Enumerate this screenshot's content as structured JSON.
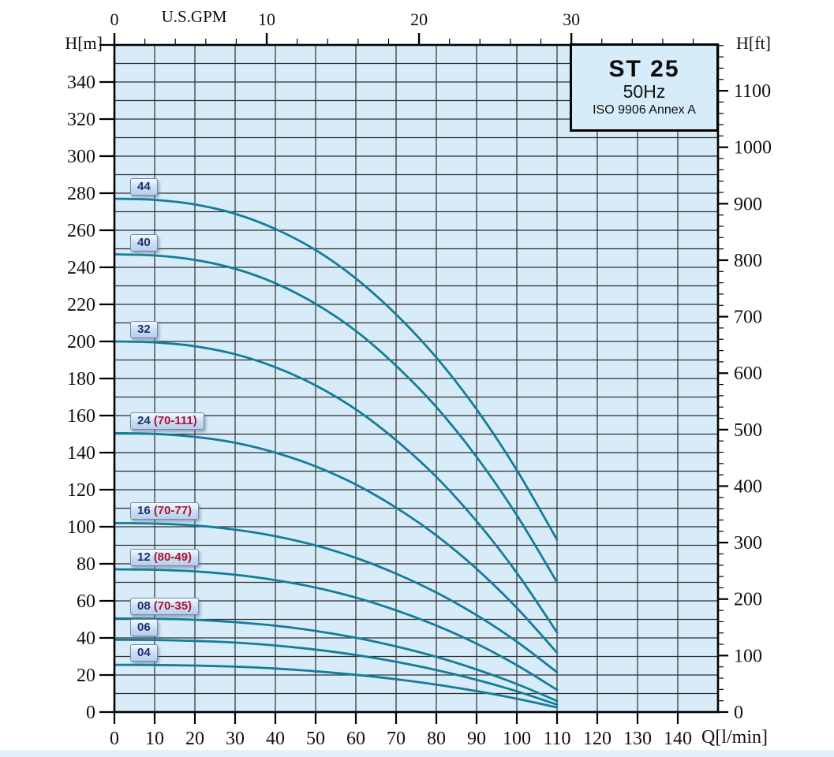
{
  "title_box": {
    "model": "ST 25",
    "frequency": "50Hz",
    "standard": "ISO 9906 Annex A"
  },
  "axis_titles": {
    "left": "H[m]",
    "right": "H[ft]",
    "top": "U.S.GPM",
    "bottom": "Q[l/min]"
  },
  "colors": {
    "plot_bg": "#d7ecf8",
    "grid": "#2e2e2e",
    "frame": "#000000",
    "curve": "#157d99",
    "pill_number": "#1c2e6e",
    "pill_suffix": "#a81535",
    "title_box_bg": "#d6ecf8"
  },
  "chart_data": {
    "type": "line",
    "title": "ST 25 50Hz pump performance curves (head vs flow)",
    "xlabel": "Q[l/min]",
    "ylabel": "H[m]",
    "x_range": [
      0,
      150
    ],
    "y_range_m": [
      0,
      360
    ],
    "x_gridline_step": 10,
    "y_gridline_step_m": 10,
    "left_tick_labels": [
      0,
      20,
      40,
      60,
      80,
      100,
      120,
      140,
      160,
      180,
      200,
      220,
      240,
      260,
      280,
      300,
      320,
      340
    ],
    "right_tick_labels_ft": [
      0,
      100,
      200,
      300,
      400,
      500,
      600,
      700,
      800,
      900,
      1000,
      1100
    ],
    "right_minor_step_ft": 20,
    "bottom_tick_labels": [
      0,
      10,
      20,
      30,
      40,
      50,
      60,
      70,
      80,
      90,
      100,
      110,
      120,
      130,
      140
    ],
    "top_tick_labels_gpm": [
      0,
      10,
      20,
      30
    ],
    "top_minor_step_gpm": 2,
    "gpm_to_lmin": 3.785,
    "x": [
      0,
      10,
      20,
      30,
      40,
      50,
      60,
      70,
      80,
      90,
      100,
      110
    ],
    "series": [
      {
        "name": "44",
        "label": "44",
        "label_suffix": "",
        "values": [
          277,
          276.4,
          273.9,
          268.9,
          260.7,
          249.3,
          234.0,
          214.6,
          191.3,
          163.4,
          130.6,
          93
        ]
      },
      {
        "name": "40",
        "label": "40",
        "label_suffix": "",
        "values": [
          247,
          246.4,
          244.0,
          239.2,
          231.4,
          220.3,
          205.7,
          186.9,
          164.6,
          137.7,
          106.2,
          70
        ]
      },
      {
        "name": "32",
        "label": "32",
        "label_suffix": "",
        "values": [
          200,
          199.5,
          197.4,
          193.1,
          186.1,
          176.3,
          163.3,
          146.7,
          126.9,
          103.0,
          75.1,
          43
        ]
      },
      {
        "name": "24",
        "label": "24",
        "label_suffix": "(70-111)",
        "values": [
          150.5,
          150.1,
          148.5,
          145.3,
          140.0,
          132.6,
          122.8,
          110.3,
          95.3,
          77.3,
          56.2,
          32
        ]
      },
      {
        "name": "16",
        "label": "16",
        "label_suffix": "(70-77)",
        "values": [
          102,
          101.7,
          100.7,
          98.4,
          94.9,
          89.9,
          83.2,
          74.7,
          64.5,
          52.3,
          38.0,
          21.5
        ]
      },
      {
        "name": "12",
        "label": "12",
        "label_suffix": "(80-49)",
        "values": [
          77,
          76.8,
          75.9,
          74.1,
          71.2,
          67.2,
          61.8,
          54.9,
          46.7,
          36.9,
          25.3,
          12
        ]
      },
      {
        "name": "08",
        "label": "08",
        "label_suffix": "(70-35)",
        "values": [
          50.5,
          50.4,
          49.8,
          48.5,
          46.6,
          43.8,
          40.1,
          35.4,
          29.8,
          23.0,
          15.1,
          6
        ]
      },
      {
        "name": "06",
        "label": "06",
        "label_suffix": "",
        "values": [
          39,
          38.9,
          38.4,
          37.5,
          35.9,
          33.7,
          30.8,
          27.1,
          22.7,
          17.4,
          11.2,
          4
        ]
      },
      {
        "name": "04",
        "label": "04",
        "label_suffix": "",
        "values": [
          25.5,
          25.4,
          25.1,
          24.5,
          23.5,
          22.0,
          20.1,
          17.7,
          14.8,
          11.3,
          7.2,
          2.5
        ]
      }
    ]
  }
}
